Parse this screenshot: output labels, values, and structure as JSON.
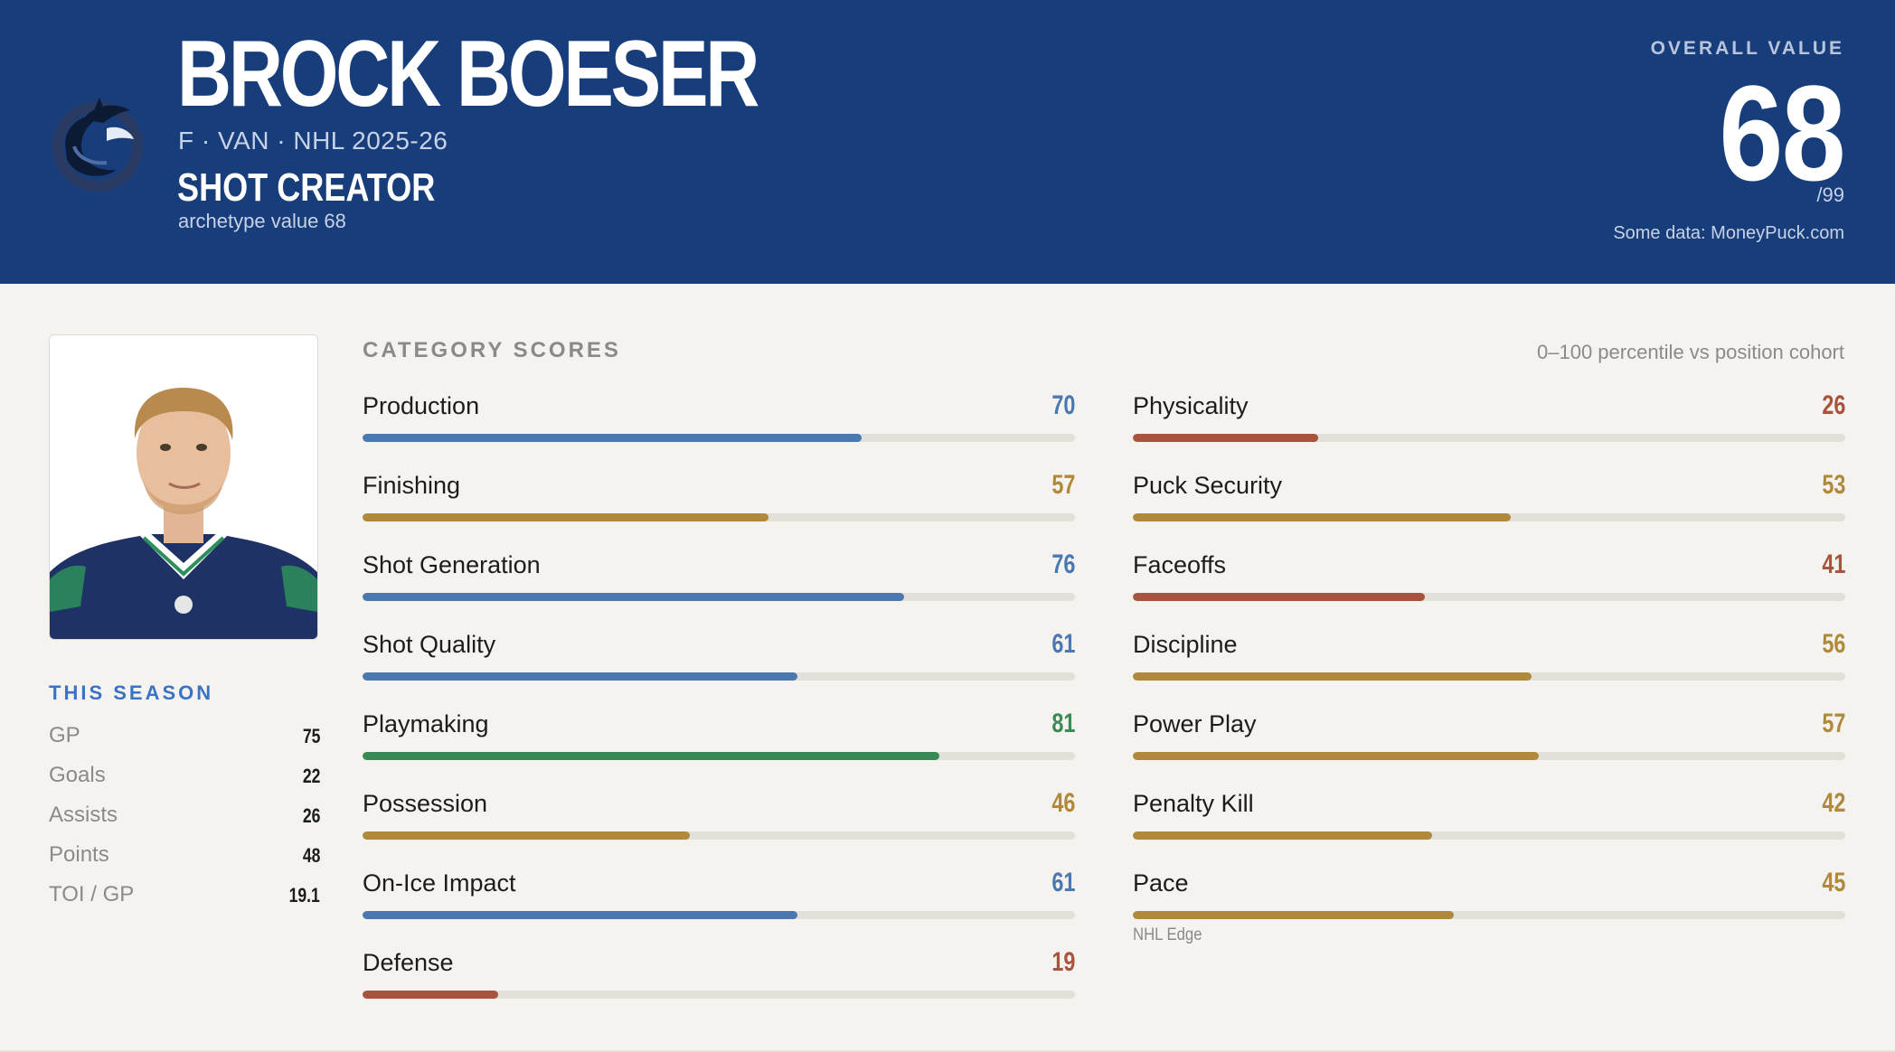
{
  "header": {
    "player_name": "BROCK BOESER",
    "meta": "F · VAN · NHL 2025-26",
    "archetype": "SHOT CREATOR",
    "archetype_value": "archetype value 68",
    "overall_label": "OVERALL VALUE",
    "overall_value": "68",
    "overall_max": "/99",
    "source": "Some data: MoneyPuck.com",
    "logo_icon": "vancouver-orca-logo-icon"
  },
  "season": {
    "title": "THIS SEASON",
    "stats": [
      {
        "label": "GP",
        "value": "75"
      },
      {
        "label": "Goals",
        "value": "22"
      },
      {
        "label": "Assists",
        "value": "26"
      },
      {
        "label": "Points",
        "value": "48"
      },
      {
        "label": "TOI / GP",
        "value": "19.1"
      }
    ]
  },
  "categories": {
    "title": "CATEGORY SCORES",
    "note": "0–100 percentile vs position cohort",
    "colors": {
      "blue": "#4a78b0",
      "gold": "#b08a3a",
      "red": "#a8533d",
      "green": "#3a8a55"
    },
    "left": [
      {
        "label": "Production",
        "score": 70,
        "color": "#4a78b0"
      },
      {
        "label": "Finishing",
        "score": 57,
        "color": "#b08a3a"
      },
      {
        "label": "Shot Generation",
        "score": 76,
        "color": "#4a78b0"
      },
      {
        "label": "Shot Quality",
        "score": 61,
        "color": "#4a78b0"
      },
      {
        "label": "Playmaking",
        "score": 81,
        "color": "#3a8a55"
      },
      {
        "label": "Possession",
        "score": 46,
        "color": "#b08a3a"
      },
      {
        "label": "On-Ice Impact",
        "score": 61,
        "color": "#4a78b0"
      },
      {
        "label": "Defense",
        "score": 19,
        "color": "#a8533d"
      }
    ],
    "right": [
      {
        "label": "Physicality",
        "score": 26,
        "color": "#a8533d"
      },
      {
        "label": "Puck Security",
        "score": 53,
        "color": "#b08a3a"
      },
      {
        "label": "Faceoffs",
        "score": 41,
        "color": "#a8533d"
      },
      {
        "label": "Discipline",
        "score": 56,
        "color": "#b08a3a"
      },
      {
        "label": "Power Play",
        "score": 57,
        "color": "#b08a3a"
      },
      {
        "label": "Penalty Kill",
        "score": 42,
        "color": "#b08a3a"
      },
      {
        "label": "Pace",
        "score": 45,
        "color": "#b08a3a",
        "foot": "NHL Edge"
      }
    ]
  }
}
